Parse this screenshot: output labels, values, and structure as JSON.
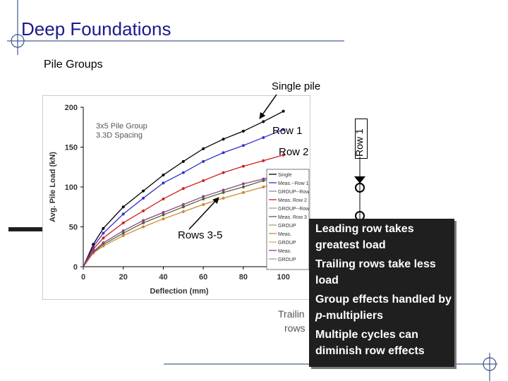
{
  "slide": {
    "title": "Deep Foundations",
    "subtitle": "Pile Groups"
  },
  "labels": {
    "single_pile": "Single pile",
    "row1": "Row 1",
    "row2": "Row 2",
    "rows35": "Rows 3-5",
    "row1_vertical": "Row 1",
    "trailing_fragment": "Trailin",
    "rows_fragment": "rows"
  },
  "bullets": [
    "Leading row takes greatest load",
    "Trailing rows take less load",
    "Group effects handled by p-multipliers",
    "Multiple cycles can diminish row effects"
  ],
  "bullet_parts": {
    "b3_pre": "Group effects handled by ",
    "b3_em": "p",
    "b3_post": "-multipliers"
  },
  "chart_data": {
    "type": "line",
    "annotation_lines": [
      "3x5 Pile Group",
      "3.3D Spacing"
    ],
    "xlabel": "Deflection (mm)",
    "ylabel": "Avg. Pile Load (kN)",
    "xlim": [
      0,
      110
    ],
    "ylim": [
      0,
      200
    ],
    "xticks": [
      "0",
      "20",
      "40",
      "60",
      "80",
      "100"
    ],
    "yticks": [
      "0",
      "50",
      "100",
      "150",
      "200"
    ],
    "legend_entries": [
      "Single",
      "Meas.--Row 1",
      "GROUP--Row 1",
      "Meas. Row 2",
      "GROUP--Row 2",
      "Meas. Row 3",
      "GROUP",
      "Meas.",
      "GROUP",
      "Meas.",
      "GROUP"
    ],
    "series": [
      {
        "name": "Single",
        "color": "#000000",
        "x": [
          0,
          5,
          10,
          20,
          30,
          40,
          50,
          60,
          70,
          80,
          90,
          100
        ],
        "y": [
          0,
          28,
          48,
          75,
          95,
          115,
          132,
          148,
          160,
          170,
          182,
          195
        ]
      },
      {
        "name": "Meas.--Row 1",
        "color": "#3333cc",
        "x": [
          0,
          5,
          10,
          20,
          30,
          40,
          50,
          60,
          70,
          80,
          90,
          100
        ],
        "y": [
          0,
          25,
          42,
          66,
          86,
          105,
          118,
          132,
          143,
          152,
          162,
          172
        ]
      },
      {
        "name": "Meas. Row 2",
        "color": "#cc2222",
        "x": [
          0,
          5,
          10,
          20,
          30,
          40,
          50,
          60,
          70,
          80,
          90,
          100
        ],
        "y": [
          0,
          22,
          36,
          55,
          70,
          85,
          98,
          108,
          118,
          126,
          133,
          140
        ]
      },
      {
        "name": "Meas. Row 3",
        "color": "#556633",
        "x": [
          0,
          5,
          10,
          20,
          30,
          40,
          50,
          60,
          70,
          80,
          90,
          100
        ],
        "y": [
          0,
          18,
          28,
          42,
          55,
          65,
          75,
          85,
          93,
          100,
          108,
          115
        ]
      },
      {
        "name": "GROUP",
        "color": "#cc8833",
        "x": [
          0,
          5,
          10,
          20,
          30,
          40,
          50,
          60,
          70,
          80,
          90,
          100
        ],
        "y": [
          0,
          17,
          26,
          39,
          50,
          60,
          69,
          78,
          86,
          93,
          100,
          108
        ]
      },
      {
        "name": "Meas.",
        "color": "#884488",
        "x": [
          0,
          5,
          10,
          20,
          30,
          40,
          50,
          60,
          70,
          80,
          90,
          100
        ],
        "y": [
          0,
          19,
          30,
          45,
          58,
          68,
          78,
          88,
          96,
          104,
          110,
          118
        ]
      }
    ]
  }
}
